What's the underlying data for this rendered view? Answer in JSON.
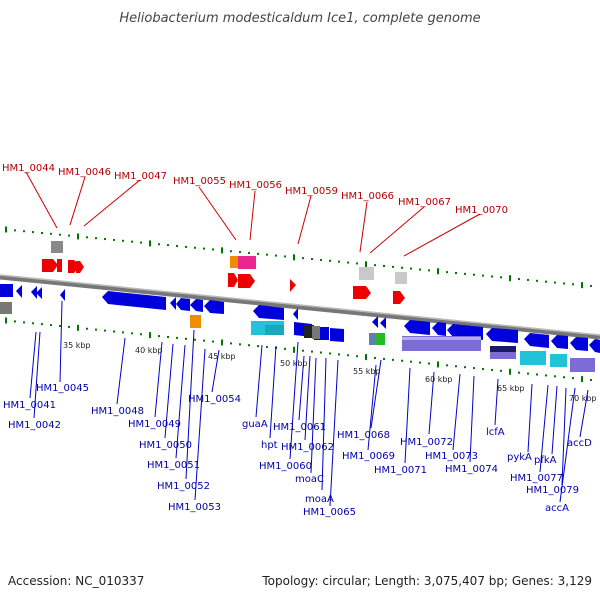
{
  "title": "Heliobacterium modesticaldum Ice1, complete genome",
  "footer": {
    "accession": "Accession: NC_010337",
    "summary": "Topology: circular; Length: 3,075,407 bp; Genes: 3,129"
  },
  "kbp_ticks": [
    "35 kbp",
    "40 kbp",
    "45 kbp",
    "50 kbp",
    "55 kbp",
    "60 kbp",
    "65 kbp",
    "70 kbp"
  ],
  "red_labels": [
    "HM1_0044",
    "HM1_0046",
    "HM1_0047",
    "HM1_0055",
    "HM1_0056",
    "HM1_0059",
    "HM1_0066",
    "HM1_0067",
    "HM1_0070"
  ],
  "blue_labels": [
    "HM1_0045",
    "HM1_0041",
    "HM1_0042",
    "HM1_0048",
    "HM1_0049",
    "HM1_0050",
    "HM1_0051",
    "HM1_0052",
    "HM1_0053",
    "HM1_0054",
    "guaA",
    "hpt",
    "HM1_0061",
    "HM1_0062",
    "HM1_0060",
    "moaC",
    "moaA",
    "HM1_0065",
    "HM1_0068",
    "HM1_0069",
    "HM1_0071",
    "HM1_0072",
    "HM1_0073",
    "HM1_0074",
    "lcfA",
    "pykA",
    "pfkA",
    "HM1_0077",
    "HM1_0079",
    "accA",
    "accD"
  ],
  "colors": {
    "forward_gene": "#ee0000",
    "reverse_gene": "#0000dd",
    "backbone": "#888888",
    "tick": "#007700",
    "rna_purple": "#7b6cd6",
    "cyan": "#22c3d9",
    "magenta": "#e8288f",
    "orange": "#f08c00",
    "gray_gene": "#888888",
    "green": "#22bb22"
  }
}
